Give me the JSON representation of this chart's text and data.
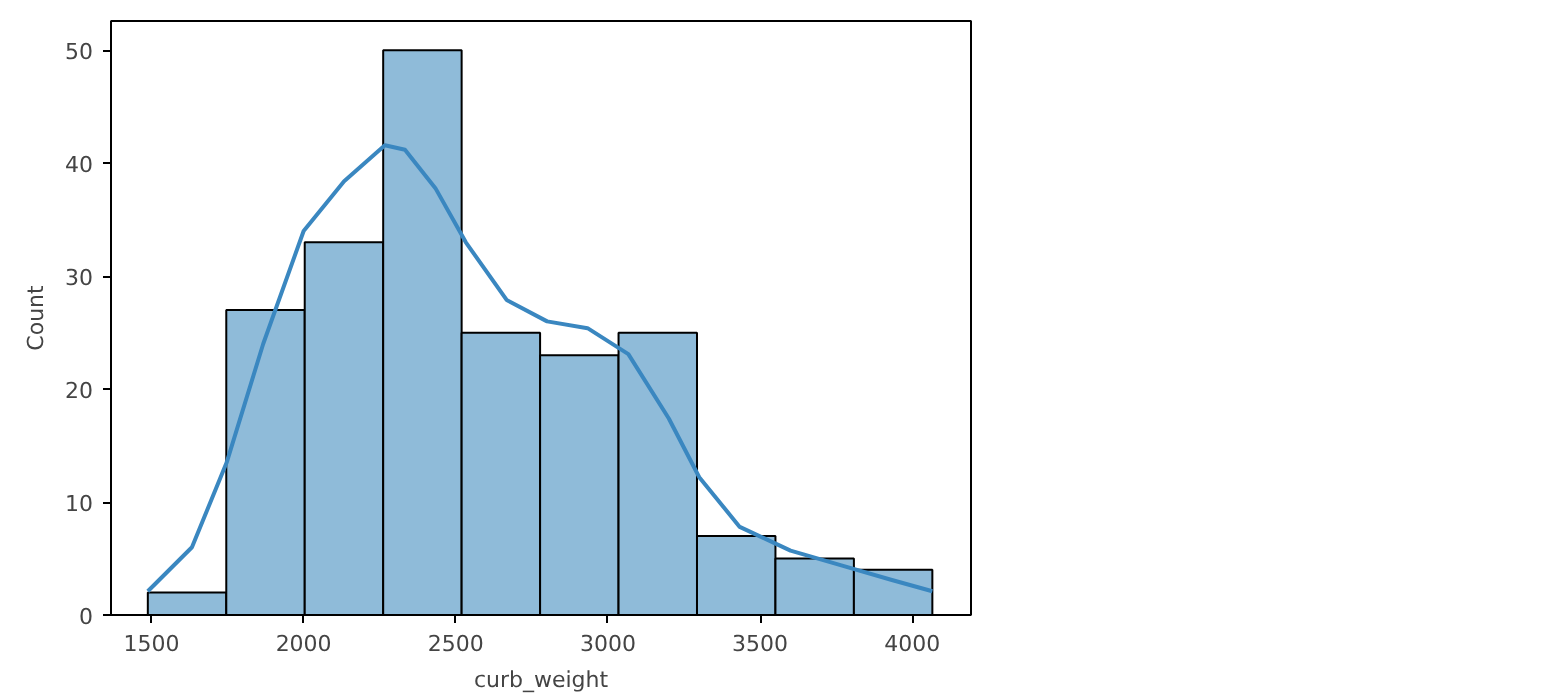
{
  "chart_data": {
    "type": "histogram",
    "xlabel": "curb_weight",
    "ylabel": "Count",
    "xlim": [
      1367,
      4193
    ],
    "ylim": [
      0,
      52.6
    ],
    "xticks": [
      1500,
      2000,
      2500,
      3000,
      3500,
      4000
    ],
    "yticks": [
      0,
      10,
      20,
      30,
      40,
      50
    ],
    "grid": false,
    "series": [
      {
        "color": "#8fbbd9",
        "bins": [
          1488,
          1745.8,
          2003.6,
          2261.4,
          2519.2,
          2777,
          3034.8,
          3292.6,
          3550.4,
          3808.2,
          4066
        ],
        "values": [
          2,
          27,
          33,
          50,
          25,
          23,
          25,
          7,
          5,
          4
        ]
      },
      {
        "type": "line",
        "color": "#3a87c0",
        "x": [
          1488,
          1633,
          1747,
          1867,
          2000,
          2133,
          2267,
          2333,
          2433,
          2533,
          2667,
          2800,
          2933,
          3067,
          3200,
          3300,
          3433,
          3600,
          3767,
          3933,
          4066
        ],
        "values": [
          2.1,
          6,
          13.5,
          24,
          34,
          38.4,
          41.6,
          41.2,
          37.8,
          33,
          27.9,
          26,
          25.4,
          23.1,
          17.4,
          12.2,
          7.8,
          5.7,
          4.4,
          3.1,
          2.1
        ]
      }
    ]
  }
}
